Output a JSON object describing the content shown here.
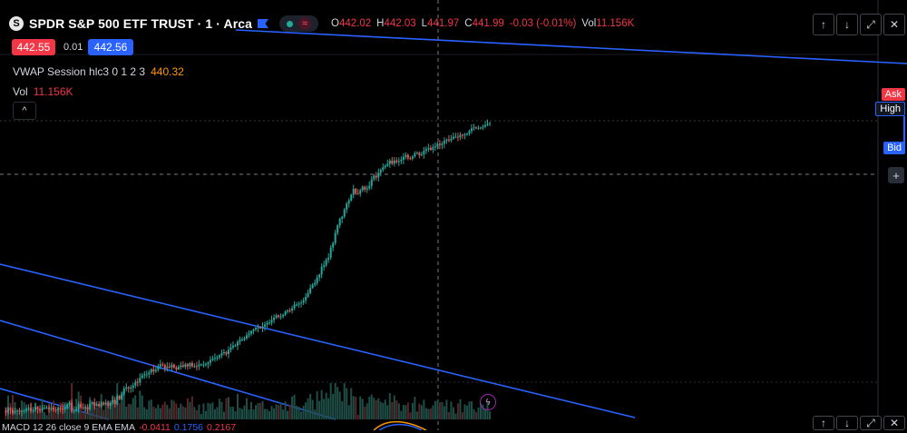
{
  "header": {
    "logo_letter": "S",
    "symbol": "SPDR S&P 500 ETF TRUST · 1 · Arca",
    "ohlc": [
      {
        "k": "O",
        "v": "442.02"
      },
      {
        "k": "H",
        "v": "442.03"
      },
      {
        "k": "L",
        "v": "441.97"
      },
      {
        "k": "C",
        "v": "441.99"
      },
      {
        "k": "",
        "v": "-0.03 (-0.01%)"
      },
      {
        "k": "Vol",
        "v": "11.156K"
      }
    ]
  },
  "quote": {
    "bid": "442.55",
    "spread": "0.01",
    "ask": "442.56"
  },
  "indicators": {
    "vwap": {
      "label": "VWAP Session hlc3 0 1 2 3",
      "value": "440.32"
    },
    "vol": {
      "label": "Vol",
      "value": "11.156K"
    },
    "macd": {
      "label": "MACD 12 26 close 9 EMA EMA",
      "v1": "-0.0411",
      "v2": "0.1756",
      "v3": "0.2167"
    }
  },
  "axis_tags": {
    "ask": "Ask",
    "high": "High",
    "bid": "Bid"
  },
  "icons": {
    "collapse": "^",
    "up": "↑",
    "down": "↓",
    "expand": "⤢",
    "close": "✕",
    "plus": "+",
    "bolt": "ϟ",
    "wave": "≈"
  },
  "colors": {
    "up": "#26a69a",
    "down": "#ef5350",
    "trendline": "#2962ff",
    "bid_box": "#f23645",
    "ask_box": "#2962ff"
  },
  "chart_data": {
    "type": "candlestick",
    "y_range": [
      425,
      445
    ],
    "series": [
      {
        "name": "",
        "values": [
          -1.6,
          -2.6,
          -0.7,
          -1.4,
          -2.9,
          -1.9,
          -1.8,
          -2.3,
          -1.9,
          -1.7,
          -1.1,
          -0.5,
          -1.9,
          -1.4,
          -0.2,
          -1.1,
          -1.6,
          -0.6,
          -0.5,
          -0.5,
          -1.1,
          -0.6,
          -1.2,
          -1.6,
          -0.6,
          -0.9,
          -1.3,
          -0.4,
          0.8,
          1.7,
          -2.1,
          -1.8,
          -1.2,
          1.1,
          -0.3,
          -0.7,
          -0.3,
          -1.2,
          1.3,
          2.0,
          0.5,
          1.2,
          0.2,
          1.8,
          1.0,
          1.8,
          0.4,
          1.7,
          2.9,
          1.1,
          4.7,
          3.3,
          5.6,
          8.0,
          8.5,
          8.0,
          8.4,
          9.3,
          10.9,
          10.7,
          12.7,
          13.8,
          14.3,
          14.3,
          15.1,
          16.5,
          15.5,
          16.2,
          17.7,
          18.7,
          18.3,
          16.9,
          17.7,
          17.3,
          18.5,
          17.3,
          16.5,
          17.5,
          18.2,
          17.6,
          18.7,
          17.8,
          19.2,
          17.8,
          17.9,
          17.8,
          18.6,
          18.6,
          18.6,
          18.7,
          19.4,
          20.6,
          21.2,
          21.5,
          21.7,
          22.6,
          23.6,
          24.0,
          23.2,
          25.0,
          26.1,
          26.9,
          26.9,
          28.5,
          29.5,
          29.6,
          30.1,
          31.5,
          32.2,
          33.3,
          34.0,
          34.7,
          34.9,
          34.6,
          35.3,
          36.2,
          37.0,
          37.1,
          38.2,
          39.2,
          40.2,
          39.6,
          39.8,
          40.5,
          41.9,
          42.4,
          42.3,
          43.4,
          45.0,
          45.0,
          45.5,
          45.9,
          46.9,
          48.4,
          50.0,
          52.3,
          53.7,
          54.5,
          56.9,
          58.2,
          61.6,
          62.3,
          64.8,
          65.7,
          70.1,
          72.1,
          76.6,
          79.9,
          82.8,
          83.7,
          86.8,
          89.5,
          90.8,
          93.3,
          96.0,
          93.9,
          93.8,
          95.4,
          96.9,
          95.7,
          96.2,
          97.3,
          100.2,
          101.8,
          101.0,
          103.0,
          104.4,
          105.5,
          106.1,
          107.0,
          108.4,
          107.1,
          108.5,
          107.8,
          108.2,
          108.8,
          110.1,
          110.9,
          109.5,
          109.3,
          110.2,
          111.6,
          111.9,
          110.8,
          111.2,
          112.7,
          113.5,
          114.0,
          113.2,
          114.3,
          114.8,
          115.9,
          115.3,
          115.9,
          117.2,
          117.7,
          117.3,
          118.1,
          118.9,
          119.0,
          118.7,
          119.8,
          119.6,
          120.0,
          120.3,
          121.5,
          122.6,
          123.0,
          122.8,
          122.9,
          123.0,
          123.4,
          124.1,
          124.6,
          125.0
        ]
      }
    ]
  }
}
